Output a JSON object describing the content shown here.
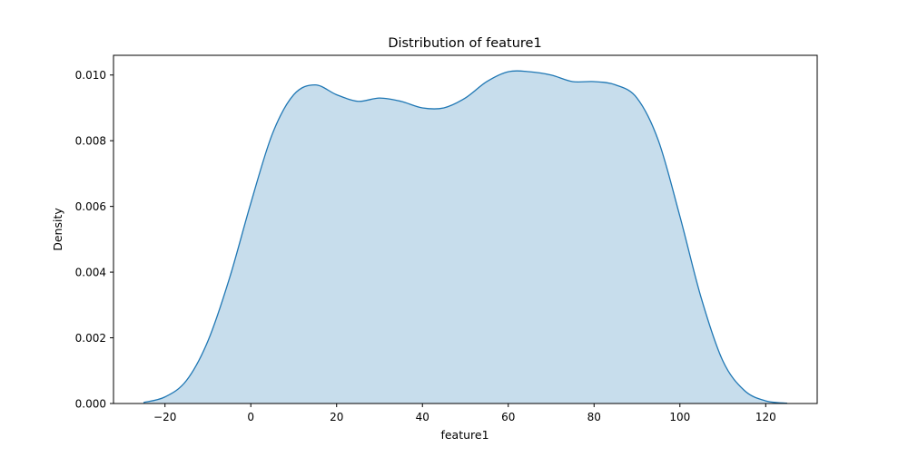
{
  "chart_data": {
    "type": "area",
    "title": "Distribution of feature1",
    "xlabel": "feature1",
    "ylabel": "Density",
    "xlim": [
      -32,
      132
    ],
    "ylim": [
      0,
      0.0106
    ],
    "x_ticks": [
      -20,
      0,
      20,
      40,
      60,
      80,
      100,
      120
    ],
    "x_tick_labels": [
      "−20",
      "0",
      "20",
      "40",
      "60",
      "80",
      "100",
      "120"
    ],
    "y_ticks": [
      0,
      0.002,
      0.004,
      0.006,
      0.008,
      0.01
    ],
    "y_tick_labels": [
      "0.000",
      "0.002",
      "0.004",
      "0.006",
      "0.008",
      "0.010"
    ],
    "grid": false,
    "series": [
      {
        "color": "#1f77b4",
        "fill_color": "#1f77b4",
        "fill_opacity": 0.25,
        "x": [
          -25,
          -20,
          -15,
          -10,
          -5,
          0,
          5,
          10,
          15,
          20,
          25,
          30,
          35,
          40,
          45,
          50,
          55,
          60,
          65,
          70,
          75,
          80,
          85,
          90,
          95,
          100,
          105,
          110,
          115,
          120,
          125
        ],
        "y": [
          3e-05,
          0.0002,
          0.0007,
          0.0019,
          0.0038,
          0.0061,
          0.0082,
          0.0094,
          0.0097,
          0.0094,
          0.0092,
          0.0093,
          0.0092,
          0.009,
          0.009,
          0.0093,
          0.0098,
          0.0101,
          0.0101,
          0.01,
          0.0098,
          0.0098,
          0.0097,
          0.0093,
          0.008,
          0.0057,
          0.0032,
          0.0013,
          0.0004,
          8e-05,
          1e-05
        ]
      }
    ]
  }
}
